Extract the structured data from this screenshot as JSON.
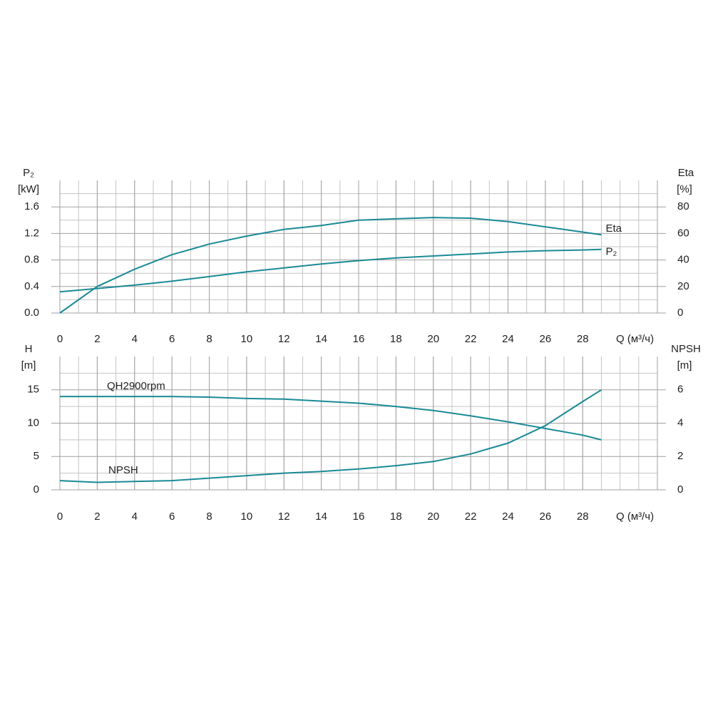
{
  "chart_data": [
    {
      "type": "line",
      "ylabel": "P₂",
      "ylabel_unit": "[kW]",
      "y2label": "Eta",
      "y2label_unit": "[%]",
      "xlabel": "Q (м³/ч)",
      "x": [
        0,
        2,
        4,
        6,
        8,
        10,
        12,
        14,
        16,
        18,
        20,
        22,
        24,
        26,
        28,
        29
      ],
      "xlim": [
        0,
        32
      ],
      "xticks": [
        0,
        2,
        4,
        6,
        8,
        10,
        12,
        14,
        16,
        18,
        20,
        22,
        24,
        26,
        28
      ],
      "ylim": [
        0,
        2.0
      ],
      "yticks": [
        {
          "value": 0,
          "label": "0.0"
        },
        0.4,
        0.8,
        1.2,
        1.6
      ],
      "y2lim": [
        0,
        100
      ],
      "y2ticks": [
        0,
        20,
        40,
        60,
        80
      ],
      "grid": true,
      "series": [
        {
          "name": "Eta",
          "color": "#1a8a96",
          "axis": "y2",
          "values": [
            0,
            20,
            33,
            44,
            52,
            58,
            63,
            66,
            70,
            71,
            72,
            71.5,
            69,
            65,
            61,
            59
          ]
        },
        {
          "name": "P₂",
          "color": "#1a8a96",
          "values": [
            0.32,
            0.37,
            0.42,
            0.48,
            0.55,
            0.62,
            0.68,
            0.74,
            0.79,
            0.83,
            0.86,
            0.89,
            0.92,
            0.94,
            0.95,
            0.96
          ]
        }
      ]
    },
    {
      "type": "line",
      "ylabel": "H",
      "ylabel_unit": "[m]",
      "y2label": "NPSH",
      "y2label_unit": "[m]",
      "xlabel": "Q (м³/ч)",
      "x": [
        0,
        2,
        4,
        6,
        8,
        10,
        12,
        14,
        16,
        18,
        20,
        22,
        24,
        26,
        28,
        29
      ],
      "xlim": [
        0,
        32
      ],
      "xticks": [
        0,
        2,
        4,
        6,
        8,
        10,
        12,
        14,
        16,
        18,
        20,
        22,
        24,
        26,
        28
      ],
      "ylim": [
        0,
        20
      ],
      "yticks": [
        0,
        5,
        10,
        15
      ],
      "y2lim": [
        0,
        8
      ],
      "y2ticks": [
        0,
        2,
        4,
        6
      ],
      "grid": true,
      "series": [
        {
          "name": "QH2900rpm",
          "color": "#1a8a96",
          "values": [
            14.0,
            14.0,
            14.0,
            14.0,
            13.9,
            13.7,
            13.6,
            13.3,
            13.0,
            12.5,
            11.9,
            11.1,
            10.2,
            9.2,
            8.2,
            7.5
          ]
        },
        {
          "name": "NPSH",
          "color": "#1a8a96",
          "axis": "y2",
          "values": [
            0.55,
            0.45,
            0.5,
            0.55,
            0.7,
            0.85,
            1.0,
            1.1,
            1.25,
            1.45,
            1.7,
            2.15,
            2.8,
            3.85,
            5.3,
            6.0
          ]
        }
      ]
    }
  ]
}
